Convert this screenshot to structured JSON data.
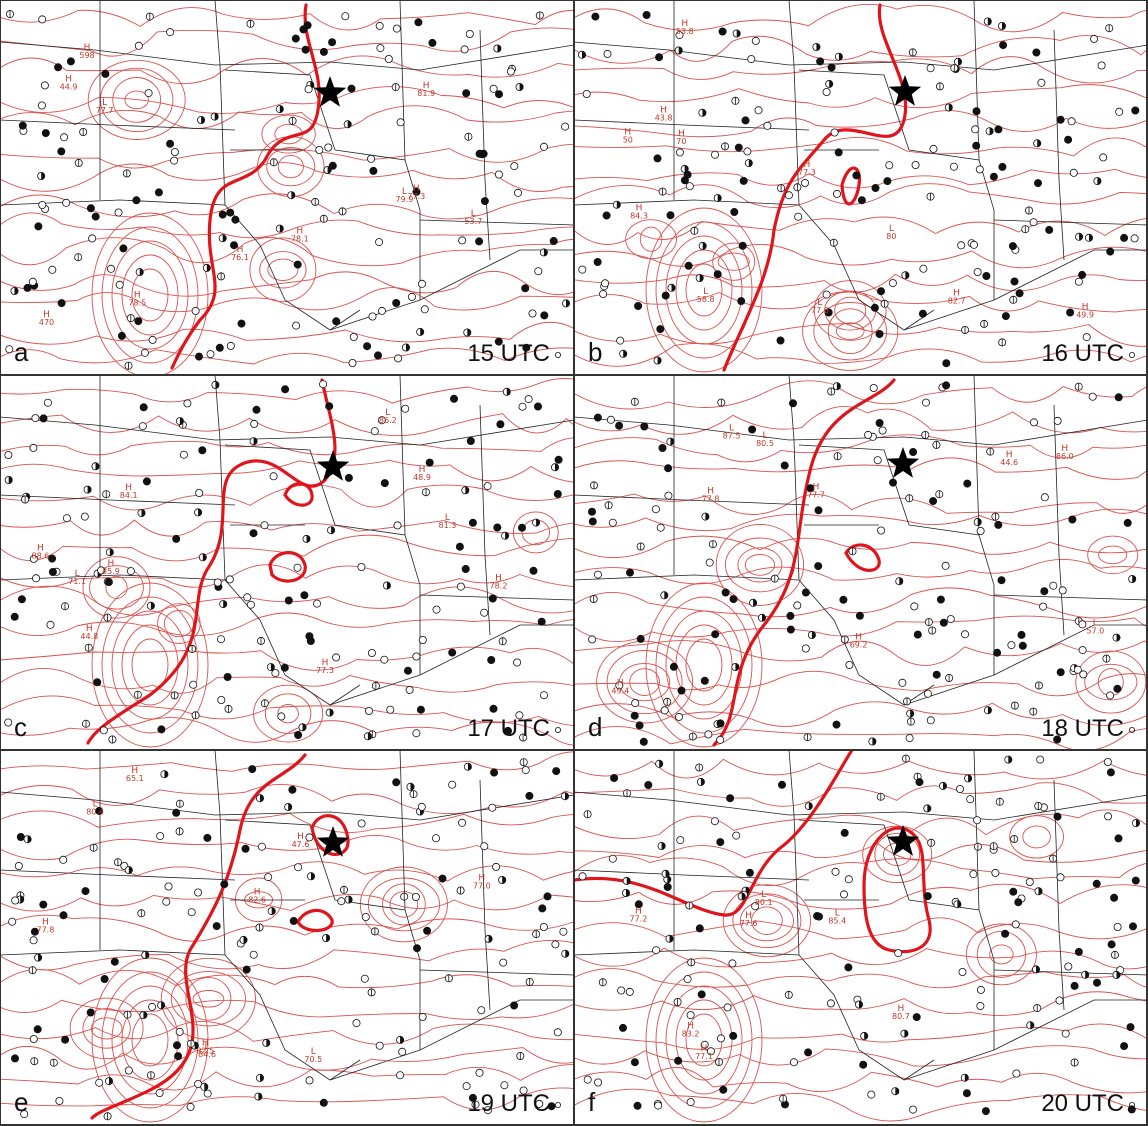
{
  "colors": {
    "contour": "#d9534f",
    "thick_contour": "#e0141b",
    "border": "#222222",
    "station_fill": "#111111",
    "background": "#ffffff"
  },
  "panels": [
    {
      "letter": "a",
      "time": "15 UTC"
    },
    {
      "letter": "b",
      "time": "16 UTC"
    },
    {
      "letter": "c",
      "time": "17 UTC"
    },
    {
      "letter": "d",
      "time": "18 UTC"
    },
    {
      "letter": "e",
      "time": "19 UTC"
    },
    {
      "letter": "f",
      "time": "20 UTC"
    }
  ],
  "labels": {
    "a": [
      "470",
      "598",
      "53.7",
      "44.9",
      "76.1",
      "77.7",
      "78.1",
      "81.9",
      "79.9",
      "77.3",
      "78.5"
    ],
    "b": [
      "49.9",
      "53.8",
      "58.8",
      "43.8",
      "70",
      "80",
      "50",
      "77.3",
      "77.6",
      "84.3",
      "82.7"
    ],
    "c": [
      "48.9",
      "44.8",
      "86.2",
      "85.9",
      "77.3",
      "81.3",
      "78.2",
      "84.1",
      "71.1",
      "88.6"
    ],
    "d": [
      "49.4",
      "44.6",
      "57.0",
      "69.2",
      "86.0",
      "87.5",
      "77.7",
      "77.8",
      "80.5"
    ],
    "e": [
      "47.6",
      "65.1",
      "70.5",
      "82.6",
      "82.5",
      "84.6",
      "77.0",
      "77.8",
      "80.4"
    ],
    "f": [
      "77.2",
      "80.7",
      "80.1",
      "77.1",
      "77.6",
      "85.4",
      "83.2"
    ]
  },
  "icons": [
    "star-icon",
    "station-clear-icon",
    "station-overcast-icon",
    "station-partial-icon"
  ]
}
